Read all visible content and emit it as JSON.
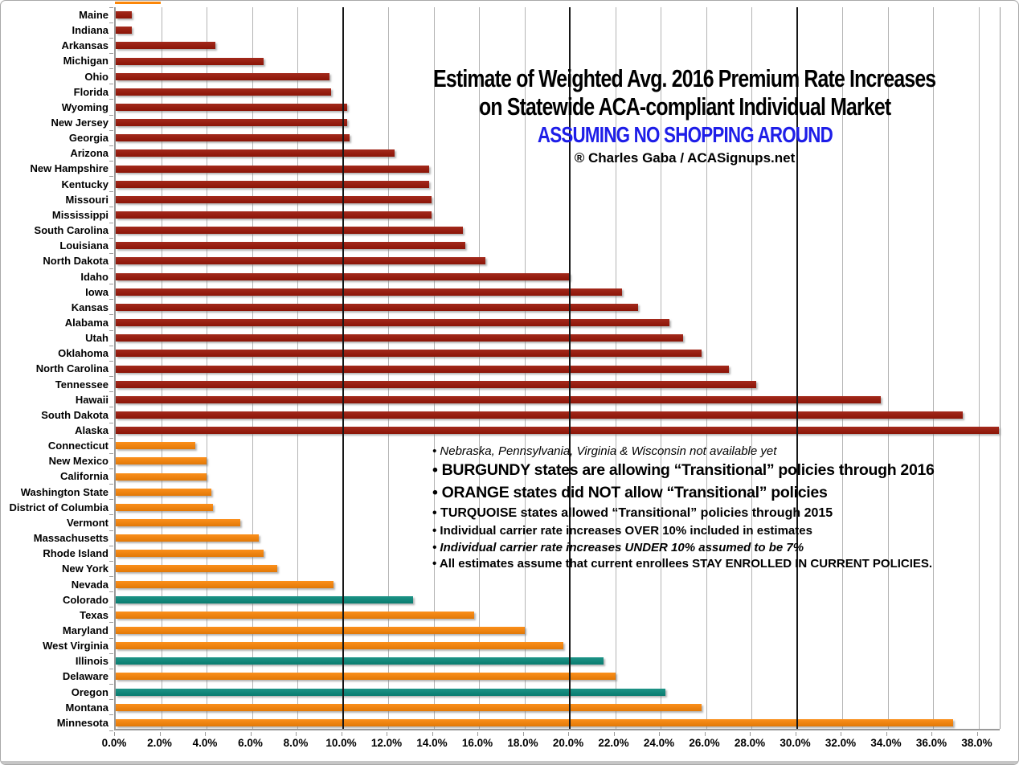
{
  "chart_data": {
    "type": "bar",
    "orientation": "horizontal",
    "title_line1": "Estimate of Weighted Avg. 2016 Premium Rate Increases",
    "title_line2": "on Statewide ACA-compliant Individual Market",
    "subtitle": "ASSUMING NO SHOPPING AROUND",
    "subtitle_color": "#1e1ee8",
    "credit": "® Charles Gaba / ACASignups.net",
    "x_axis": {
      "min": 0,
      "max": 38,
      "tick_step": 2,
      "tick_suffix": "%",
      "dark_gridlines_at": [
        10,
        20,
        30
      ],
      "grid": true
    },
    "group_colors": {
      "burgundy": "#9b1708",
      "orange": "#fb8608",
      "turquoise": "#0a8a7c"
    },
    "categories": [
      "Maine",
      "Indiana",
      "Arkansas",
      "Michigan",
      "Ohio",
      "Florida",
      "Wyoming",
      "New Jersey",
      "Georgia",
      "Arizona",
      "New Hampshire",
      "Kentucky",
      "Missouri",
      "Mississippi",
      "South Carolina",
      "Louisiana",
      "North Dakota",
      "Idaho",
      "Iowa",
      "Kansas",
      "Alabama",
      "Utah",
      "Oklahoma",
      "North Carolina",
      "Tennessee",
      "Hawaii",
      "South Dakota",
      "Alaska",
      "Connecticut",
      "New Mexico",
      "California",
      "Washington State",
      "District of Columbia",
      "Vermont",
      "Massachusetts",
      "Rhode Island",
      "New York",
      "Nevada",
      "Colorado",
      "Texas",
      "Maryland",
      "West Virginia",
      "Illinois",
      "Delaware",
      "Oregon",
      "Montana",
      "Minnesota"
    ],
    "values": [
      0.7,
      0.7,
      4.4,
      6.5,
      9.4,
      9.5,
      10.2,
      10.2,
      10.3,
      12.3,
      13.8,
      13.8,
      13.9,
      13.9,
      15.3,
      15.4,
      16.3,
      20.0,
      22.3,
      23.0,
      24.4,
      25.0,
      25.8,
      27.0,
      28.2,
      33.7,
      37.3,
      38.9,
      3.5,
      4.0,
      4.0,
      4.2,
      4.3,
      5.5,
      6.3,
      6.5,
      7.1,
      9.6,
      13.1,
      15.8,
      18.0,
      19.7,
      21.5,
      22.0,
      24.2,
      25.8,
      36.9
    ],
    "groups": [
      "burgundy",
      "burgundy",
      "burgundy",
      "burgundy",
      "burgundy",
      "burgundy",
      "burgundy",
      "burgundy",
      "burgundy",
      "burgundy",
      "burgundy",
      "burgundy",
      "burgundy",
      "burgundy",
      "burgundy",
      "burgundy",
      "burgundy",
      "burgundy",
      "burgundy",
      "burgundy",
      "burgundy",
      "burgundy",
      "burgundy",
      "burgundy",
      "burgundy",
      "burgundy",
      "burgundy",
      "burgundy",
      "orange",
      "orange",
      "orange",
      "orange",
      "orange",
      "orange",
      "orange",
      "orange",
      "orange",
      "orange",
      "turquoise",
      "orange",
      "orange",
      "orange",
      "turquoise",
      "orange",
      "turquoise",
      "orange",
      "orange"
    ],
    "clipped_top_bar": {
      "group": "orange",
      "width_pct": 2.0
    },
    "annotations": [
      {
        "text": "• Nebraska, Pennsylvania, Virginia & Wisconsin not available yet",
        "style": "italic"
      },
      {
        "text": "• BURGUNDY states are allowing “Transitional” policies through 2016",
        "style": "bold-lg"
      },
      {
        "text": "• ORANGE states did NOT allow “Transitional” policies",
        "style": "bold-lg"
      },
      {
        "text": "• TURQUOISE states allowed “Transitional” policies through 2015",
        "style": "bold-md"
      },
      {
        "text": "• Individual carrier rate increases OVER 10% included in estimates",
        "style": "bold-sm"
      },
      {
        "text": "• Individual carrier rate increases UNDER 10% assumed to be 7%",
        "style": "bold-italic-sm"
      },
      {
        "text": "• All estimates assume that current enrollees STAY ENROLLED IN CURRENT POLICIES.",
        "style": "bold-sm"
      }
    ]
  }
}
